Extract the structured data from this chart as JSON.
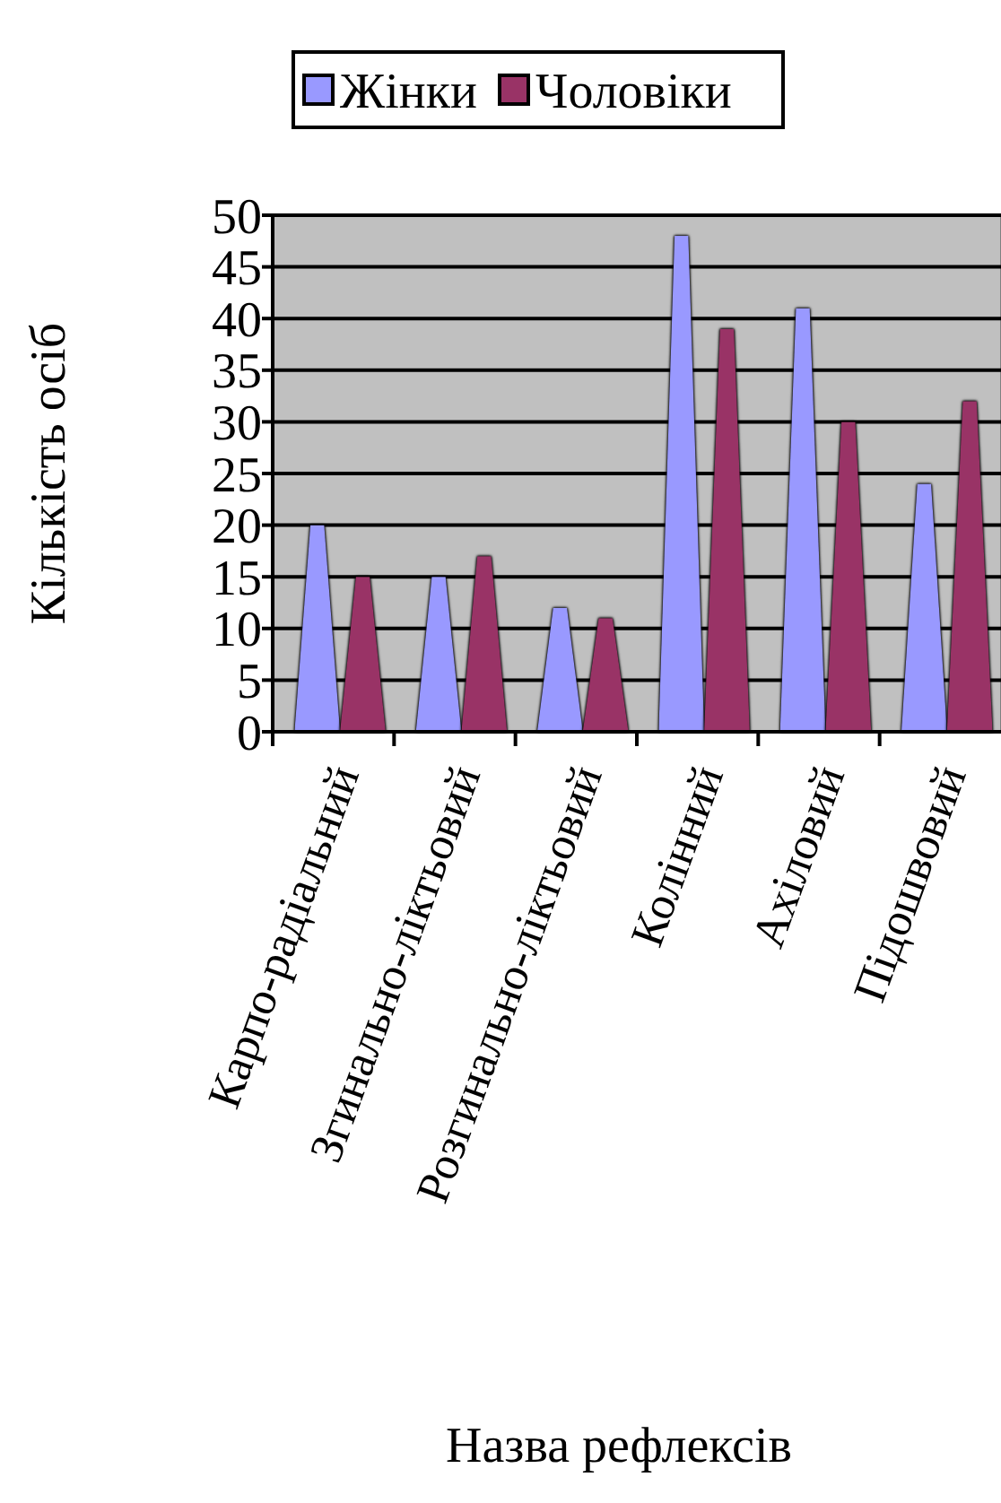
{
  "chart_data": {
    "type": "bar",
    "xlabel": "Назва рефлексів",
    "ylabel": "Кількість осіб",
    "categories": [
      "Карпо-радіальний",
      "Згинально-ліктьовий",
      "Розгинально-ліктьовий",
      "Колінний",
      "Ахіловий",
      "Підошвовий"
    ],
    "series": [
      {
        "name": "Жінки",
        "color": "#9999ff",
        "values": [
          20,
          15,
          12,
          48,
          41,
          24
        ]
      },
      {
        "name": "Чоловіки",
        "color": "#993366",
        "values": [
          15,
          17,
          11,
          39,
          30,
          32
        ]
      }
    ],
    "ylim": [
      0,
      50
    ],
    "yticks": [
      0,
      5,
      10,
      15,
      20,
      25,
      30,
      35,
      40,
      45,
      50
    ],
    "grid": "y",
    "legend": "top"
  }
}
